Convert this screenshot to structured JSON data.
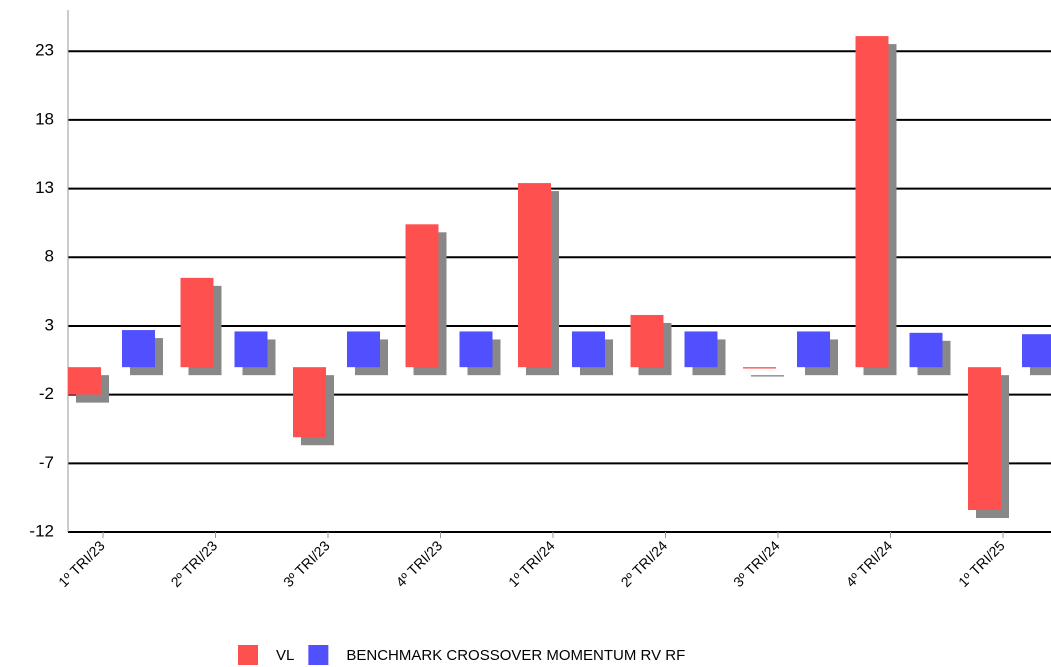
{
  "chart_data": {
    "type": "bar",
    "categories": [
      "1º TRI/23",
      "2º TRI/23",
      "3º TRI/23",
      "4º TRI/23",
      "1º TRI/24",
      "2º TRI/24",
      "3º TRI/24",
      "4º TRI/24",
      "1º TRI/25"
    ],
    "series": [
      {
        "name": "VL",
        "color": "#ff5050",
        "values": [
          -2.0,
          6.5,
          -5.1,
          10.4,
          13.4,
          3.8,
          -0.1,
          24.1,
          -10.4
        ]
      },
      {
        "name": "BENCHMARK CROSSOVER MOMENTUM RV RF",
        "color": "#5050ff",
        "values": [
          2.7,
          2.6,
          2.6,
          2.6,
          2.6,
          2.6,
          2.6,
          2.5,
          2.4
        ]
      }
    ],
    "ylim": [
      -12,
      26
    ],
    "yticks": [
      -12,
      -7,
      -2,
      3,
      8,
      13,
      18,
      23
    ],
    "grid": true,
    "legend": "bottom"
  }
}
